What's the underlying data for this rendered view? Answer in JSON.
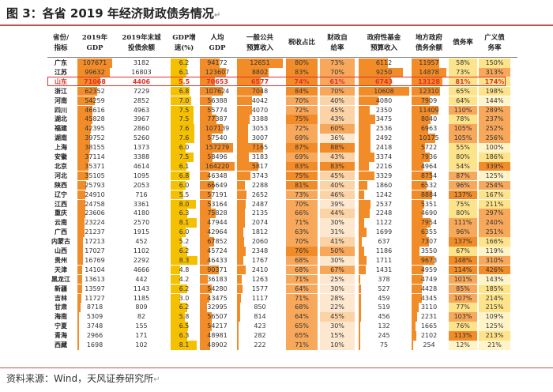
{
  "title": "图 3：各省 2019 年经济财政债务情况",
  "title_mark": "↵",
  "source": "资料来源：Wind，天风证券研究所",
  "source_mark": "↵",
  "headers": [
    {
      "l1": "省份/",
      "l2": "指标"
    },
    {
      "l1": "2019年",
      "l2": "GDP"
    },
    {
      "l1": "2019年末城",
      "l2": "投债余额"
    },
    {
      "l1": "GDP增",
      "l2": "速(%)"
    },
    {
      "l1": "人均",
      "l2": "GDP"
    },
    {
      "l1": "一般公共",
      "l2": "预算收入"
    },
    {
      "l1": "税收占比",
      "l2": ""
    },
    {
      "l1": "财政自",
      "l2": "给率"
    },
    {
      "l1": "政府性基金",
      "l2": "预算收入"
    },
    {
      "l1": "地方政府",
      "l2": "债务余额"
    },
    {
      "l1": "债务率",
      "l2": ""
    },
    {
      "l1": "广义债",
      "l2": "务率"
    }
  ],
  "colors": {
    "orange_dark": "#f28c28",
    "orange_mid": "#f7a85b",
    "orange_light": "#fbd3a6",
    "gold": "#f5c000",
    "gold_light": "#fde48a",
    "highlight": "#e0322a"
  },
  "rows": [
    [
      "广东",
      "107671",
      "3182",
      "6.2",
      "94172",
      "12651",
      "80%",
      "73%",
      "6112",
      "11957",
      "58%",
      "150%"
    ],
    [
      "江苏",
      "99632",
      "16803",
      "6.1",
      "123607",
      "8802",
      "83%",
      "70%",
      "9250",
      "14878",
      "73%",
      "313%"
    ],
    [
      "山东",
      "71068",
      "4406",
      "5.5",
      "70653",
      "6577",
      "74%",
      "61%",
      "6743",
      "13128",
      "81%",
      "174%"
    ],
    [
      "浙江",
      "62352",
      "7229",
      "6.8",
      "107624",
      "7048",
      "84%",
      "70%",
      "10608",
      "12310",
      "65%",
      "198%"
    ],
    [
      "河南",
      "54259",
      "2852",
      "7.0",
      "56388",
      "4042",
      "70%",
      "40%",
      "4080",
      "7909",
      "64%",
      "144%"
    ],
    [
      "四川",
      "46616",
      "4963",
      "7.5",
      "55774",
      "4070",
      "72%",
      "45%",
      "2350",
      "11409",
      "110%",
      "289%"
    ],
    [
      "湖北",
      "45828",
      "3967",
      "7.5",
      "77387",
      "3388",
      "75%",
      "43%",
      "3475",
      "8040",
      "78%",
      "237%"
    ],
    [
      "福建",
      "42395",
      "2860",
      "7.6",
      "107139",
      "3053",
      "72%",
      "60%",
      "2536",
      "6963",
      "105%",
      "252%"
    ],
    [
      "湖南",
      "39752",
      "5260",
      "7.6",
      "57540",
      "3007",
      "69%",
      "36%",
      "2492",
      "10175",
      "105%",
      "256%"
    ],
    [
      "上海",
      "38155",
      "1373",
      "6.0",
      "157279",
      "7165",
      "87%",
      "88%",
      "2418",
      "5722",
      "55%",
      "100%"
    ],
    [
      "安徽",
      "37114",
      "3388",
      "7.5",
      "58496",
      "3183",
      "69%",
      "43%",
      "3374",
      "7936",
      "80%",
      "186%"
    ],
    [
      "北京",
      "35371",
      "4614",
      "6.1",
      "164220",
      "5817",
      "83%",
      "83%",
      "2216",
      "4964",
      "54%",
      "339%"
    ],
    [
      "河北",
      "35105",
      "1095",
      "6.8",
      "46348",
      "3743",
      "75%",
      "45%",
      "3329",
      "8754",
      "87%",
      "125%"
    ],
    [
      "陕西",
      "25793",
      "2053",
      "6.0",
      "66649",
      "2288",
      "81%",
      "40%",
      "1860",
      "6532",
      "96%",
      "254%"
    ],
    [
      "辽宁",
      "24910",
      "716",
      "5.5",
      "57191",
      "2652",
      "73%",
      "46%",
      "1242",
      "8884",
      "137%",
      "167%"
    ],
    [
      "江西",
      "24758",
      "3361",
      "8.0",
      "53164",
      "2487",
      "70%",
      "39%",
      "2537",
      "5351",
      "75%",
      "211%"
    ],
    [
      "重庆",
      "23606",
      "4180",
      "6.3",
      "75828",
      "2135",
      "66%",
      "44%",
      "2248",
      "4690",
      "80%",
      "297%"
    ],
    [
      "云南",
      "23224",
      "2570",
      "8.1",
      "47944",
      "2074",
      "71%",
      "30%",
      "1122",
      "7954",
      "111%",
      "240%"
    ],
    [
      "广西",
      "21237",
      "1915",
      "6.0",
      "42964",
      "1812",
      "63%",
      "31%",
      "1699",
      "6355",
      "96%",
      "251%"
    ],
    [
      "内蒙古",
      "17213",
      "452",
      "5.2",
      "67852",
      "2060",
      "70%",
      "41%",
      "637",
      "7307",
      "137%",
      "166%"
    ],
    [
      "山西",
      "17027",
      "1102",
      "6.2",
      "45724",
      "2348",
      "76%",
      "50%",
      "1186",
      "3550",
      "67%",
      "119%"
    ],
    [
      "贵州",
      "16769",
      "2292",
      "8.3",
      "46433",
      "1767",
      "68%",
      "30%",
      "1711",
      "9673",
      "148%",
      "310%"
    ],
    [
      "天津",
      "14104",
      "4666",
      "4.8",
      "90371",
      "2410",
      "68%",
      "67%",
      "1431",
      "4959",
      "114%",
      "426%"
    ],
    [
      "黑龙江",
      "13613",
      "442",
      "4.2",
      "36183",
      "1263",
      "71%",
      "25%",
      "378",
      "4749",
      "101%",
      "143%"
    ],
    [
      "新疆",
      "13597",
      "1143",
      "6.2",
      "54280",
      "1577",
      "64%",
      "30%",
      "527",
      "4428",
      "85%",
      "185%"
    ],
    [
      "吉林",
      "11727",
      "1185",
      "3.0",
      "43475",
      "1117",
      "71%",
      "28%",
      "459",
      "4345",
      "107%",
      "214%"
    ],
    [
      "甘肃",
      "8718",
      "809",
      "6.2",
      "32995",
      "850",
      "68%",
      "22%",
      "519",
      "3110",
      "77%",
      "215%"
    ],
    [
      "海南",
      "5309",
      "82",
      "5.8",
      "56507",
      "814",
      "64%",
      "45%",
      "456",
      "2231",
      "103%",
      "109%"
    ],
    [
      "宁夏",
      "3748",
      "155",
      "6.5",
      "54217",
      "423",
      "65%",
      "30%",
      "132",
      "1665",
      "76%",
      "125%"
    ],
    [
      "青海",
      "2966",
      "171",
      "6.3",
      "48981",
      "282",
      "65%",
      "15%",
      "245",
      "2102",
      "113%",
      "213%"
    ],
    [
      "西藏",
      "1698",
      "102",
      "8.1",
      "48902",
      "222",
      "71%",
      "10%",
      "75",
      "254",
      "12%",
      "21%"
    ]
  ]
}
